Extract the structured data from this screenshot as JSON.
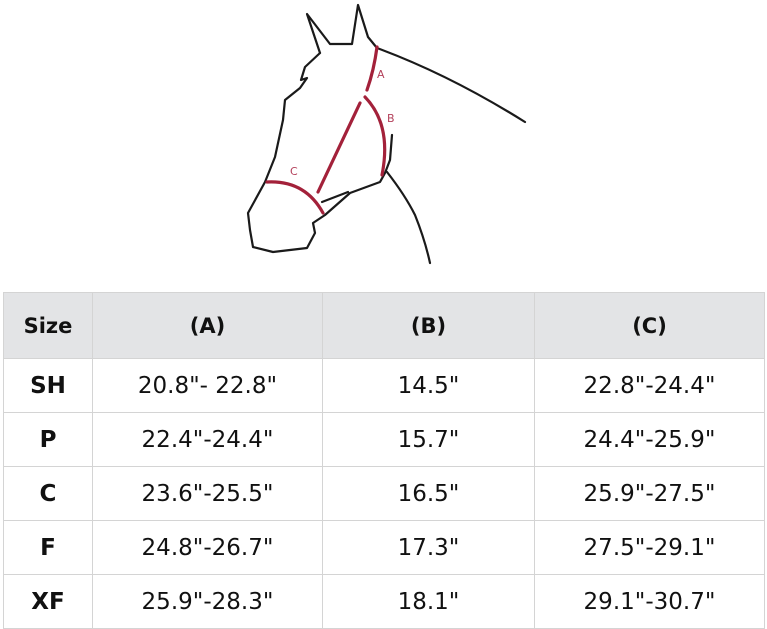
{
  "diagram": {
    "labels": [
      "A",
      "B",
      "C"
    ],
    "outline_color": "#1a1a1a",
    "measure_color": "#a3213a"
  },
  "table": {
    "headers": [
      "Size",
      "(A)",
      "(B)",
      "(C)"
    ],
    "rows": [
      [
        "SH",
        "20.8\"- 22.8\"",
        "14.5\"",
        "22.8\"-24.4\""
      ],
      [
        "P",
        "22.4\"-24.4\"",
        "15.7\"",
        "24.4\"-25.9\""
      ],
      [
        "C",
        "23.6\"-25.5\"",
        "16.5\"",
        "25.9\"-27.5\""
      ],
      [
        "F",
        "24.8\"-26.7\"",
        "17.3\"",
        "27.5\"-29.1\""
      ],
      [
        "XF",
        "25.9\"-28.3\"",
        "18.1\"",
        "29.1\"-30.7\""
      ]
    ]
  }
}
